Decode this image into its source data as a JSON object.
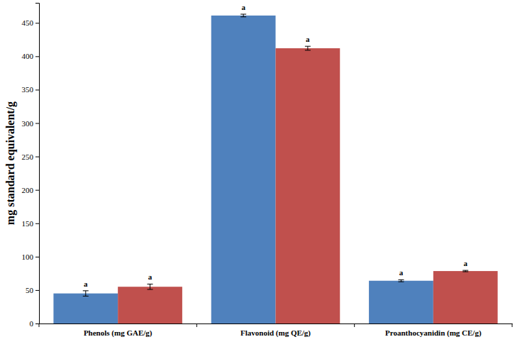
{
  "chart_data": {
    "type": "bar",
    "y_label": "mg standard equivalent/g",
    "categories": [
      "Phenols (mg GAE/g)",
      "Flavonoid (mg QE/g)",
      "Proanthocyanidin (mg CE/g)"
    ],
    "series": [
      {
        "color": "#4f81bd",
        "values": [
          45,
          461,
          64
        ],
        "errors": [
          4,
          2,
          1.5
        ],
        "annotations": [
          "a",
          "a",
          "a"
        ]
      },
      {
        "color": "#c0504d",
        "values": [
          55,
          412,
          78.5
        ],
        "errors": [
          4,
          3,
          1
        ],
        "annotations": [
          "a",
          "a",
          "a"
        ]
      }
    ],
    "ylim": [
      0,
      480
    ],
    "yticks": [
      0,
      50,
      100,
      150,
      200,
      250,
      300,
      350,
      400,
      450
    ],
    "grid": false
  }
}
